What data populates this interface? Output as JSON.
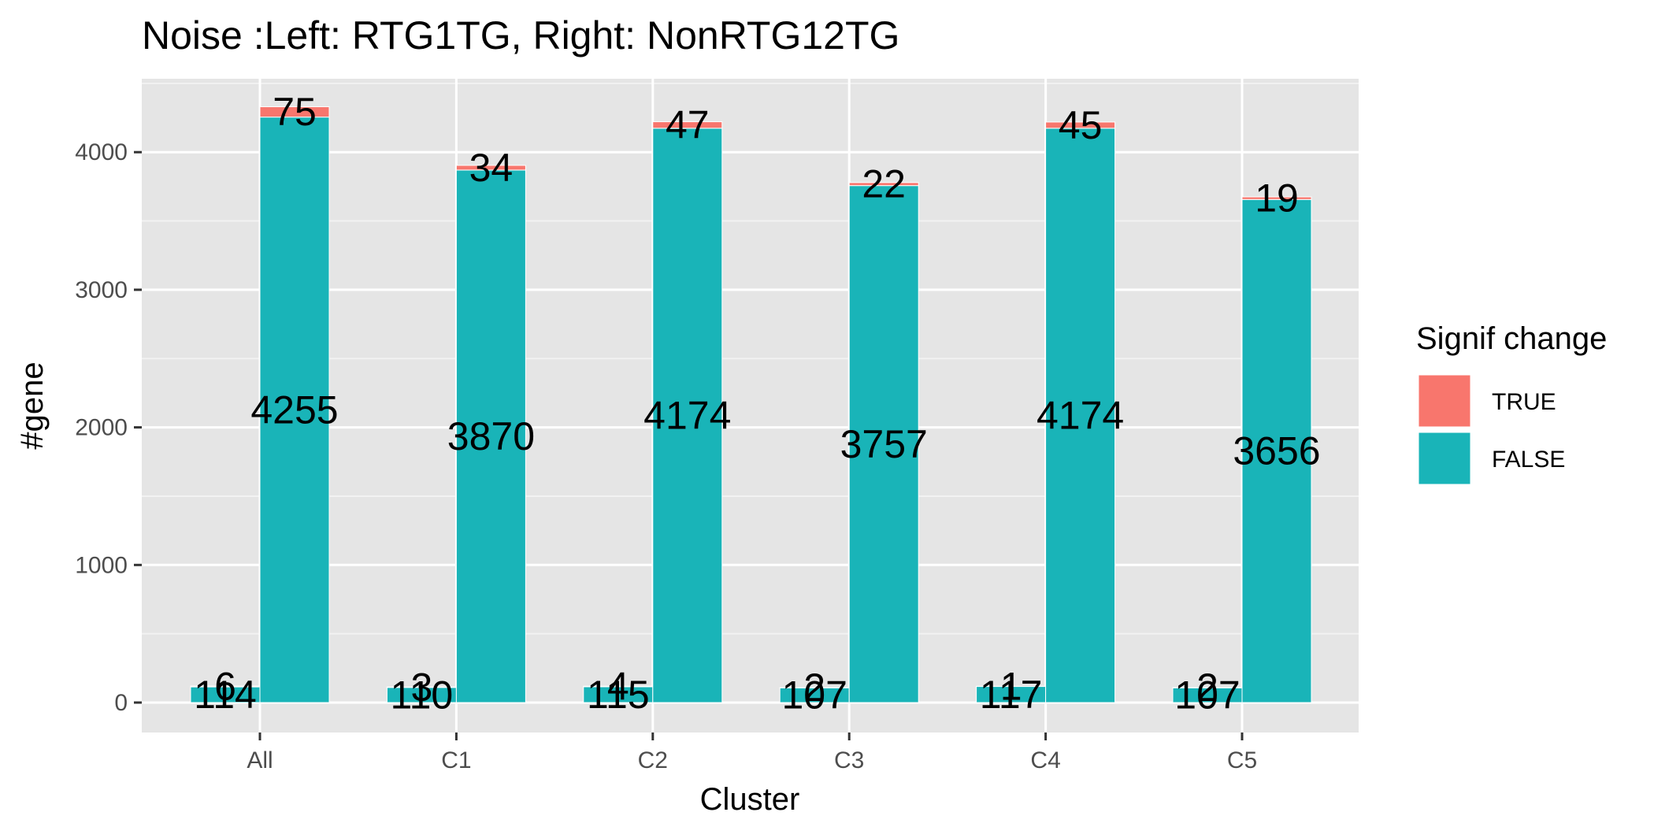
{
  "chart_data": {
    "type": "bar",
    "title": "Noise  :Left: RTG1TG, Right: NonRTG12TG",
    "xlabel": "Cluster",
    "ylabel": "#gene",
    "categories": [
      "All",
      "C1",
      "C2",
      "C3",
      "C4",
      "C5"
    ],
    "ylim": [
      -200,
      4550
    ],
    "yticks": [
      0,
      1000,
      2000,
      3000,
      4000
    ],
    "grid": true,
    "legend": {
      "title": "Signif change",
      "placement": "right",
      "entries": [
        {
          "label": "TRUE",
          "color": "#F8766D"
        },
        {
          "label": "FALSE",
          "color": "#19B4B8"
        }
      ]
    },
    "series": [
      {
        "label": "TRUE",
        "color": "#F8766D",
        "left": [
          6,
          3,
          4,
          2,
          1,
          2
        ],
        "right": [
          75,
          34,
          47,
          22,
          45,
          19
        ]
      },
      {
        "label": "FALSE",
        "color": "#19B4B8",
        "left": [
          114,
          110,
          115,
          107,
          117,
          107
        ],
        "right": [
          4255,
          3870,
          4174,
          3757,
          4174,
          3656
        ]
      }
    ]
  }
}
